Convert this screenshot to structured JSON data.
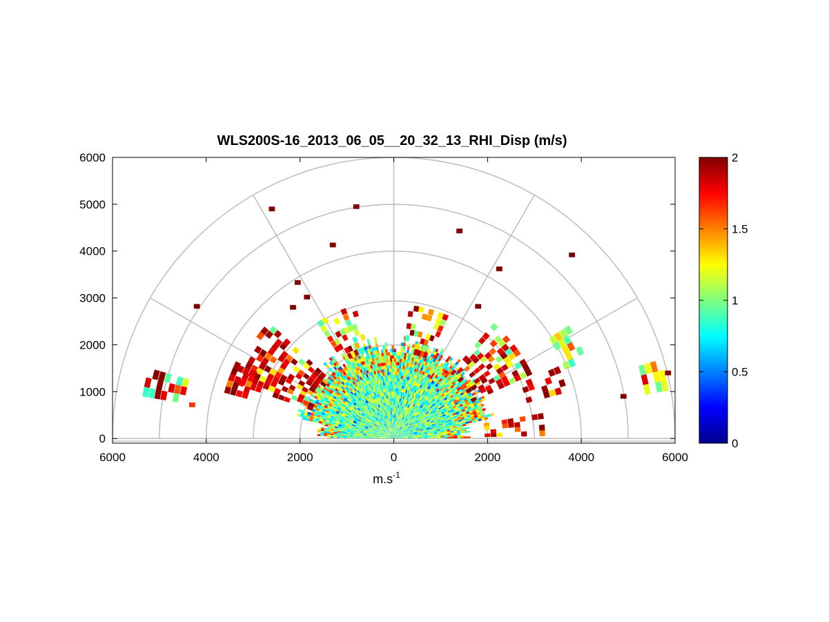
{
  "chart_data": {
    "type": "heatmap",
    "title": "WLS200S-16_2013_06_05__20_32_13_RHI_Disp (m/s)",
    "xlabel_base": "m.s",
    "xlabel_sup": "-1",
    "ylabel": "",
    "xlim": [
      -6000,
      6000
    ],
    "ylim": [
      -100,
      6000
    ],
    "x_ticks": [
      -6000,
      -4000,
      -2000,
      0,
      2000,
      4000,
      6000
    ],
    "x_tick_labels": [
      "6000",
      "4000",
      "2000",
      "0",
      "2000",
      "4000",
      "6000"
    ],
    "y_ticks": [
      0,
      1000,
      2000,
      3000,
      4000,
      5000,
      6000
    ],
    "y_tick_labels": [
      "0",
      "1000",
      "2000",
      "3000",
      "4000",
      "5000",
      "6000"
    ],
    "polar_rings": [
      1000,
      2000,
      3000,
      4000,
      5000,
      6000
    ],
    "polar_spokes_deg": [
      0,
      30,
      60,
      90,
      120,
      150,
      180
    ],
    "grid": true,
    "colormap": "jet",
    "colorbar": {
      "min": 0,
      "max": 2,
      "ticks": [
        0,
        0.5,
        1,
        1.5,
        2
      ],
      "tick_labels": [
        "0",
        "0.5",
        "1",
        "1.5",
        "2"
      ],
      "placement": "right"
    },
    "data_description_extent": {
      "dense_core_radius_m": 2000,
      "sparse_ray_extent_m": 6000
    },
    "isolated_cells": [
      {
        "x": -2600,
        "y": 4900,
        "v": 2
      },
      {
        "x": -800,
        "y": 4950,
        "v": 2
      },
      {
        "x": -1300,
        "y": 4130,
        "v": 2
      },
      {
        "x": 1400,
        "y": 4430,
        "v": 2
      },
      {
        "x": 2250,
        "y": 3620,
        "v": 2
      },
      {
        "x": 3800,
        "y": 3920,
        "v": 2
      },
      {
        "x": -4200,
        "y": 2820,
        "v": 2
      },
      {
        "x": -2050,
        "y": 3330,
        "v": 2
      },
      {
        "x": -2150,
        "y": 2800,
        "v": 2
      },
      {
        "x": -1850,
        "y": 3020,
        "v": 2
      },
      {
        "x": 1800,
        "y": 2820,
        "v": 2
      },
      {
        "x": -4300,
        "y": 720,
        "v": 1.65
      },
      {
        "x": 4900,
        "y": 900,
        "v": 2
      },
      {
        "x": 5850,
        "y": 1400,
        "v": 2
      }
    ]
  }
}
